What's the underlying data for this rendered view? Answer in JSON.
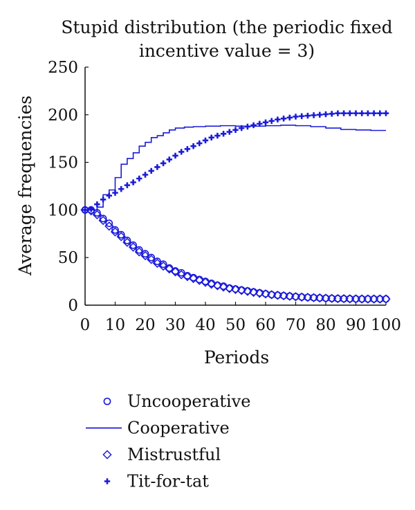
{
  "chart_data": {
    "type": "line",
    "title": [
      "Stupid distribution (the periodic fixed",
      "incentive value = 3)"
    ],
    "xlabel": "Periods",
    "ylabel": "Average frequencies",
    "xlim": [
      0,
      100
    ],
    "ylim": [
      0,
      250
    ],
    "x_ticks": [
      0,
      10,
      20,
      30,
      40,
      50,
      60,
      70,
      80,
      90,
      100
    ],
    "y_ticks": [
      0,
      50,
      100,
      150,
      200,
      250
    ],
    "grid": false,
    "legend_position": "bottom",
    "color": "#1a1adb",
    "series": [
      {
        "name": "Uncooperative",
        "marker": "circle",
        "x": [
          0,
          2,
          4,
          6,
          8,
          10,
          12,
          14,
          16,
          18,
          20,
          22,
          24,
          26,
          28,
          30,
          32,
          34,
          36,
          38,
          40,
          42,
          44,
          46,
          48,
          50,
          52,
          54,
          56,
          58,
          60,
          62,
          64,
          66,
          68,
          70,
          72,
          74,
          76,
          78,
          80,
          82,
          84,
          86,
          88,
          90,
          92,
          94,
          96,
          98,
          100
        ],
        "values": [
          100,
          100,
          97,
          91,
          86,
          79,
          74,
          68,
          63,
          58,
          54,
          50,
          46,
          43,
          39,
          36,
          34,
          31,
          29,
          27,
          25,
          23,
          21,
          20,
          18,
          17,
          16,
          15,
          14,
          13,
          12,
          11,
          10.5,
          10,
          9.5,
          9,
          8.6,
          8.2,
          7.9,
          7.6,
          7.3,
          7.1,
          6.9,
          6.8,
          6.7,
          6.6,
          6.5,
          6.5,
          6.5,
          6.5,
          6.5
        ]
      },
      {
        "name": "Cooperative",
        "marker": "none",
        "x": [
          0,
          4,
          6,
          8,
          10,
          12,
          14,
          16,
          18,
          20,
          22,
          24,
          26,
          28,
          30,
          33,
          36,
          40,
          45,
          50,
          55,
          60,
          65,
          70,
          75,
          80,
          85,
          90,
          95,
          100
        ],
        "values": [
          100,
          103,
          116,
          121,
          134,
          148,
          154,
          160,
          167,
          171,
          176,
          178,
          181,
          184,
          186,
          187,
          187.5,
          188,
          188.5,
          188,
          188,
          188.5,
          189,
          188.5,
          187.5,
          186,
          184.5,
          184,
          183.5,
          183.5
        ]
      },
      {
        "name": "Mistrustful",
        "marker": "diamond",
        "x": [
          0,
          2,
          4,
          6,
          8,
          10,
          12,
          14,
          16,
          18,
          20,
          22,
          24,
          26,
          28,
          30,
          32,
          34,
          36,
          38,
          40,
          42,
          44,
          46,
          48,
          50,
          52,
          54,
          56,
          58,
          60,
          62,
          64,
          66,
          68,
          70,
          72,
          74,
          76,
          78,
          80,
          82,
          84,
          86,
          88,
          90,
          92,
          94,
          96,
          98,
          100
        ],
        "values": [
          100,
          99,
          95,
          89,
          83,
          77,
          72,
          66,
          61,
          56,
          52,
          48,
          44,
          41,
          38,
          35,
          32,
          30,
          28,
          26,
          24,
          22,
          20.5,
          19,
          17.5,
          16.5,
          15.5,
          14.5,
          13.5,
          12.5,
          11.8,
          11,
          10.4,
          9.9,
          9.4,
          8.9,
          8.5,
          8.2,
          7.9,
          7.6,
          7.3,
          7.1,
          6.9,
          6.8,
          6.7,
          6.6,
          6.5,
          6.5,
          6.5,
          6.5,
          6.5
        ]
      },
      {
        "name": "Tit-for-tat",
        "marker": "plus",
        "x": [
          0,
          2,
          4,
          6,
          8,
          10,
          12,
          14,
          16,
          18,
          20,
          22,
          24,
          26,
          28,
          30,
          32,
          34,
          36,
          38,
          40,
          42,
          44,
          46,
          48,
          50,
          52,
          54,
          56,
          58,
          60,
          62,
          64,
          66,
          68,
          70,
          72,
          74,
          76,
          78,
          80,
          82,
          84,
          86,
          88,
          90,
          92,
          94,
          96,
          98,
          100
        ],
        "values": [
          100,
          101,
          106,
          111,
          115,
          118,
          122,
          126,
          129,
          133,
          137,
          141,
          145,
          149,
          153,
          157,
          161,
          164,
          167,
          170,
          173,
          176,
          178,
          180,
          182,
          184,
          186,
          187.5,
          189,
          190.5,
          192,
          193.5,
          195,
          196,
          197,
          198,
          198.5,
          199,
          199.5,
          200,
          200.5,
          201,
          201.5,
          201.5,
          201.5,
          201.5,
          201.5,
          201.5,
          201.5,
          201.5,
          201.5
        ]
      }
    ]
  }
}
